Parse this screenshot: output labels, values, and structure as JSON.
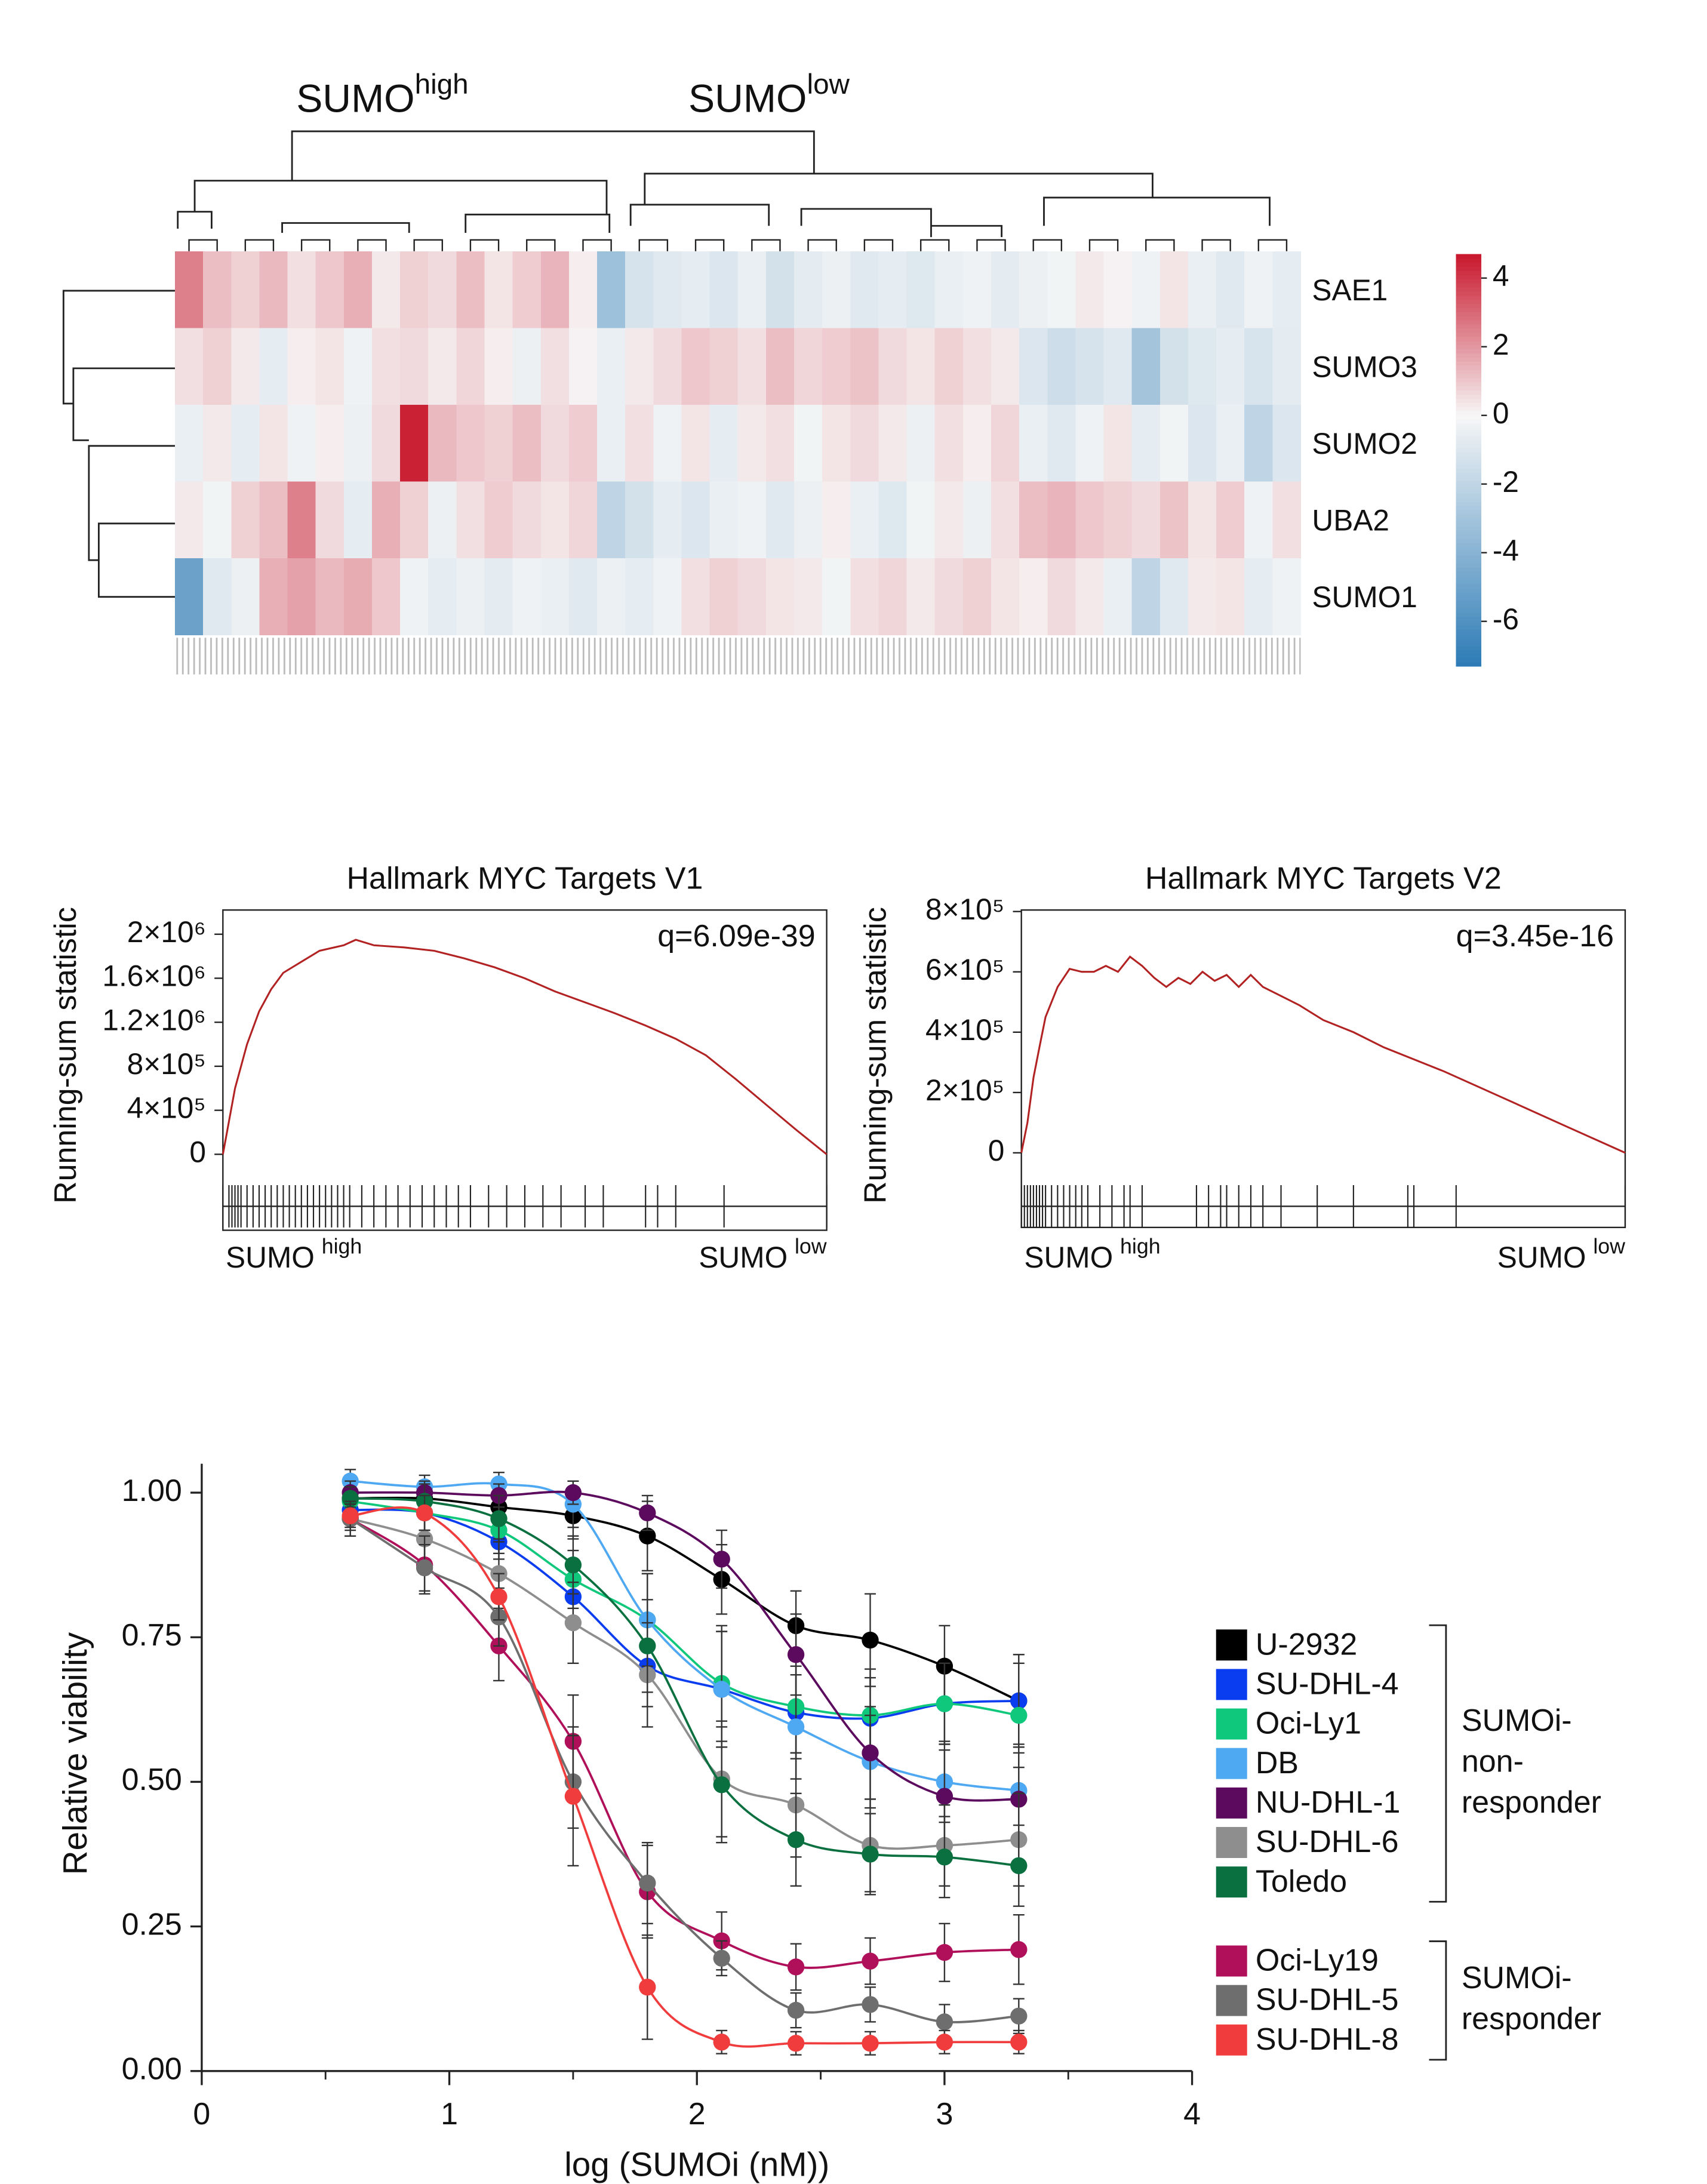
{
  "chart_data": [
    {
      "type": "heatmap",
      "column_groups": [
        {
          "text": "SUMO",
          "sup": "high"
        },
        {
          "text": "SUMO",
          "sup": "low"
        }
      ],
      "rows": [
        "SAE1",
        "SUMO3",
        "SUMO2",
        "UBA2",
        "SUMO1"
      ],
      "values": [
        [
          2.5,
          1.2,
          0.8,
          1.3,
          0.5,
          1.0,
          1.5,
          0.3,
          0.8,
          0.6,
          1.2,
          0.4,
          0.9,
          1.4,
          0.2,
          -3.2,
          -1.2,
          -0.8,
          -0.6,
          -1.0,
          -0.5,
          -1.3,
          -0.7,
          -0.4,
          -0.8,
          -0.6,
          -0.9,
          -0.5,
          -0.3,
          -0.7,
          -0.4,
          -0.2,
          0.3,
          0.1,
          -0.3,
          0.4,
          -0.5,
          -0.8,
          -0.3,
          -0.6
        ],
        [
          0.5,
          0.8,
          0.3,
          -0.6,
          0.2,
          0.4,
          -0.3,
          0.5,
          0.6,
          0.3,
          0.7,
          0.2,
          -0.4,
          0.5,
          0.1,
          -0.5,
          0.3,
          0.6,
          1.0,
          0.8,
          0.5,
          1.2,
          0.7,
          0.9,
          1.1,
          0.6,
          0.4,
          0.8,
          0.5,
          0.3,
          -1.0,
          -1.5,
          -1.2,
          -0.8,
          -3.0,
          -1.3,
          -0.9,
          -0.6,
          -1.1,
          -0.7
        ],
        [
          -0.5,
          0.3,
          -0.6,
          0.4,
          -0.3,
          0.2,
          -0.4,
          0.6,
          4.5,
          1.3,
          1.0,
          0.8,
          1.2,
          0.6,
          0.9,
          -0.5,
          0.5,
          -0.3,
          0.4,
          -0.6,
          0.3,
          0.5,
          -0.2,
          0.4,
          0.6,
          0.3,
          -0.4,
          0.5,
          0.2,
          0.7,
          -0.5,
          -0.8,
          -0.3,
          0.4,
          -0.6,
          -0.2,
          -1.0,
          -0.5,
          -2.0,
          -1.0
        ],
        [
          0.3,
          -0.2,
          0.8,
          1.2,
          2.5,
          0.6,
          -0.6,
          1.5,
          0.8,
          -0.4,
          0.5,
          0.9,
          0.6,
          0.4,
          0.7,
          -2.0,
          -1.3,
          -0.6,
          -1.0,
          -0.5,
          -0.3,
          -0.8,
          -0.4,
          0.2,
          -0.5,
          -0.9,
          -0.2,
          0.3,
          -0.4,
          0.5,
          1.2,
          1.4,
          1.0,
          0.8,
          0.6,
          1.1,
          0.4,
          0.9,
          -0.3,
          0.5
        ],
        [
          -5.0,
          -0.8,
          -0.4,
          1.5,
          1.8,
          1.3,
          1.6,
          1.0,
          -0.3,
          -0.6,
          -0.4,
          -0.7,
          -0.3,
          -0.5,
          -0.8,
          -0.4,
          -0.6,
          -0.3,
          0.5,
          0.8,
          0.6,
          0.4,
          0.3,
          -0.2,
          0.5,
          0.7,
          0.3,
          0.6,
          0.8,
          0.4,
          0.2,
          0.6,
          0.3,
          -0.5,
          -2.0,
          -0.8,
          0.3,
          0.4,
          -0.6,
          -0.3
        ]
      ],
      "zlim": [
        -7.3,
        4.7
      ],
      "zticks": [
        4,
        2,
        0,
        -2,
        -4,
        -6
      ],
      "colors": {
        "low": "#2c7bb6",
        "mid": "#f7f7f7",
        "high": "#c8172c"
      }
    },
    {
      "type": "line",
      "title": "Hallmark MYC Targets V1",
      "annotation": "q=6.09e-39",
      "ylabel": "Running-sum statistic",
      "xlabel_left": {
        "text": "SUMO",
        "sup": "high"
      },
      "xlabel_right": {
        "text": "SUMO",
        "sup": "low"
      },
      "x": [
        0,
        1,
        2,
        4,
        6,
        8,
        10,
        13,
        16,
        20,
        22,
        25,
        30,
        35,
        40,
        45,
        50,
        55,
        60,
        65,
        70,
        75,
        80,
        85,
        90,
        95,
        100
      ],
      "values": [
        0,
        300000,
        600000,
        1000000,
        1300000,
        1500000,
        1650000,
        1750000,
        1850000,
        1900000,
        1950000,
        1900000,
        1880000,
        1850000,
        1780000,
        1700000,
        1600000,
        1480000,
        1380000,
        1280000,
        1170000,
        1050000,
        900000,
        680000,
        450000,
        220000,
        0
      ],
      "hits": [
        0,
        1,
        1.5,
        2,
        2.5,
        3,
        4,
        5,
        6,
        7,
        8,
        9,
        10,
        11,
        12,
        13,
        14,
        15,
        16,
        17,
        18,
        19,
        20,
        21,
        23,
        25,
        27,
        29,
        31,
        33,
        35,
        37,
        39,
        41,
        44,
        47,
        50,
        53,
        56,
        60,
        63,
        70,
        72,
        75,
        83,
        100
      ],
      "xlim": [
        0,
        100
      ],
      "ylim": [
        -280000,
        2220000
      ],
      "yticks": [
        {
          "value": 0,
          "label": "0"
        },
        {
          "value": 400000,
          "label": "4×10⁵"
        },
        {
          "value": 800000,
          "label": "8×10⁵"
        },
        {
          "value": 1200000,
          "label": "1.2×10⁶"
        },
        {
          "value": 1600000,
          "label": "1.6×10⁶"
        },
        {
          "value": 2000000,
          "label": "2×10⁶"
        }
      ],
      "color": "#b22222"
    },
    {
      "type": "line",
      "title": "Hallmark MYC Targets V2",
      "annotation": "q=3.45e-16",
      "ylabel": "Running-sum statistic",
      "xlabel_left": {
        "text": "SUMO",
        "sup": "high"
      },
      "xlabel_right": {
        "text": "SUMO",
        "sup": "low"
      },
      "x": [
        0,
        1,
        2,
        3,
        4,
        6,
        8,
        10,
        12,
        14,
        16,
        18,
        20,
        22,
        24,
        26,
        28,
        30,
        32,
        34,
        36,
        38,
        40,
        43,
        46,
        50,
        55,
        60,
        70,
        80,
        90,
        100
      ],
      "values": [
        0,
        100000,
        250000,
        350000,
        450000,
        550000,
        610000,
        600000,
        600000,
        620000,
        600000,
        650000,
        620000,
        580000,
        550000,
        580000,
        560000,
        600000,
        570000,
        590000,
        550000,
        590000,
        550000,
        520000,
        490000,
        440000,
        400000,
        350000,
        270000,
        180000,
        90000,
        0
      ],
      "hits": [
        0,
        0.5,
        1,
        1.5,
        2,
        2.5,
        3,
        3.5,
        4,
        5,
        6,
        7,
        8,
        9,
        10,
        11,
        13,
        15,
        17,
        18,
        20,
        29,
        31,
        33,
        34,
        36,
        38,
        40,
        43,
        49,
        55,
        64,
        65,
        72,
        100
      ],
      "xlim": [
        0,
        100
      ],
      "ylim": [
        -107000,
        805000
      ],
      "yticks": [
        {
          "value": 0,
          "label": "0"
        },
        {
          "value": 200000,
          "label": "2×10⁵"
        },
        {
          "value": 400000,
          "label": "4×10⁵"
        },
        {
          "value": 600000,
          "label": "6×10⁵"
        },
        {
          "value": 800000,
          "label": "8×10⁵"
        }
      ],
      "color": "#b22222"
    },
    {
      "type": "scatter",
      "xlabel": "log (SUMOi (nM))",
      "ylabel": "Relative viability",
      "xlim": [
        0,
        4
      ],
      "xticks": [
        0,
        1,
        2,
        3,
        4
      ],
      "xminor": [
        0.5,
        1.5,
        2.5,
        3.5
      ],
      "ylim": [
        0,
        1.05
      ],
      "yticks": [
        {
          "value": 0,
          "label": "0.00"
        },
        {
          "value": 0.25,
          "label": "0.25"
        },
        {
          "value": 0.5,
          "label": "0.50"
        },
        {
          "value": 0.75,
          "label": "0.75"
        },
        {
          "value": 1,
          "label": "1.00"
        }
      ],
      "x": [
        0.6,
        0.9,
        1.2,
        1.5,
        1.8,
        2.1,
        2.4,
        2.7,
        3.0,
        3.3
      ],
      "groups": [
        {
          "label_lines": [
            "SUMOi-",
            "non-",
            "responder"
          ],
          "series": [
            {
              "name": "U-2932",
              "color": "#000000",
              "values": [
                0.99,
                0.99,
                0.975,
                0.96,
                0.925,
                0.85,
                0.77,
                0.745,
                0.7,
                0.64
              ],
              "errors": [
                0.02,
                0.03,
                0.03,
                0.04,
                0.06,
                0.06,
                0.06,
                0.08,
                0.07,
                0.08
              ]
            },
            {
              "name": "SU-DHL-4",
              "color": "#0a3cf0",
              "values": [
                0.97,
                0.965,
                0.915,
                0.82,
                0.7,
                0.66,
                0.62,
                0.61,
                0.635,
                0.64
              ],
              "errors": [
                0.02,
                0.03,
                0.03,
                0.05,
                0.07,
                0.1,
                0.08,
                0.07,
                0.07,
                0.08
              ]
            },
            {
              "name": "Oci-Ly1",
              "color": "#10c87c",
              "values": [
                0.985,
                0.965,
                0.935,
                0.85,
                0.78,
                0.67,
                0.63,
                0.615,
                0.635,
                0.615
              ],
              "errors": [
                0.02,
                0.03,
                0.04,
                0.05,
                0.08,
                0.1,
                0.08,
                0.08,
                0.07,
                0.09
              ]
            },
            {
              "name": "DB",
              "color": "#4fa8f2",
              "values": [
                1.02,
                1.01,
                1.015,
                0.98,
                0.78,
                0.66,
                0.595,
                0.535,
                0.5,
                0.485
              ],
              "errors": [
                0.02,
                0.02,
                0.02,
                0.04,
                0.08,
                0.1,
                0.09,
                0.08,
                0.07,
                0.08
              ]
            },
            {
              "name": "NU-DHL-1",
              "color": "#5c0a5e",
              "values": [
                1.0,
                1.0,
                0.995,
                1.0,
                0.965,
                0.885,
                0.72,
                0.55,
                0.475,
                0.47
              ],
              "errors": [
                0.02,
                0.02,
                0.02,
                0.02,
                0.03,
                0.05,
                0.07,
                0.08,
                0.08,
                0.08
              ]
            },
            {
              "name": "SU-DHL-6",
              "color": "#8e8e8e",
              "values": [
                0.955,
                0.92,
                0.86,
                0.775,
                0.685,
                0.505,
                0.46,
                0.39,
                0.39,
                0.4
              ],
              "errors": [
                0.03,
                0.05,
                0.06,
                0.07,
                0.09,
                0.1,
                0.09,
                0.08,
                0.07,
                0.08
              ]
            },
            {
              "name": "Toledo",
              "color": "#0b7040",
              "values": [
                0.99,
                0.985,
                0.955,
                0.875,
                0.735,
                0.495,
                0.4,
                0.375,
                0.37,
                0.355
              ],
              "errors": [
                0.02,
                0.03,
                0.04,
                0.05,
                0.08,
                0.1,
                0.08,
                0.07,
                0.07,
                0.07
              ]
            }
          ]
        },
        {
          "label_lines": [
            "SUMOi-",
            "responder"
          ],
          "series": [
            {
              "name": "Oci-Ly19",
              "color": "#b0105a",
              "values": [
                0.955,
                0.875,
                0.735,
                0.57,
                0.31,
                0.225,
                0.18,
                0.19,
                0.205,
                0.21
              ],
              "errors": [
                0.03,
                0.05,
                0.06,
                0.08,
                0.08,
                0.05,
                0.04,
                0.04,
                0.05,
                0.06
              ]
            },
            {
              "name": "SU-DHL-5",
              "color": "#6e6e6e",
              "values": [
                0.955,
                0.87,
                0.785,
                0.5,
                0.325,
                0.195,
                0.105,
                0.115,
                0.085,
                0.095
              ],
              "errors": [
                0.02,
                0.04,
                0.05,
                0.08,
                0.07,
                0.03,
                0.03,
                0.03,
                0.03,
                0.03
              ]
            },
            {
              "name": "SU-DHL-8",
              "color": "#f03c3c",
              "values": [
                0.96,
                0.965,
                0.82,
                0.475,
                0.145,
                0.05,
                0.048,
                0.048,
                0.05,
                0.05
              ],
              "errors": [
                0.02,
                0.03,
                0.04,
                0.12,
                0.09,
                0.02,
                0.02,
                0.02,
                0.02,
                0.02
              ]
            }
          ]
        }
      ]
    }
  ]
}
